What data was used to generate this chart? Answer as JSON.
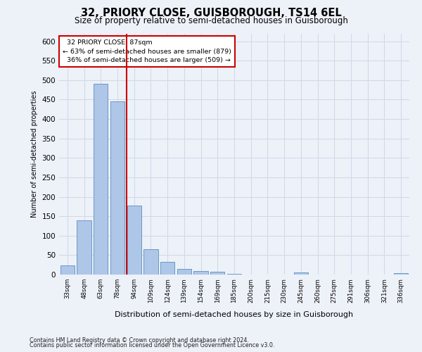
{
  "title1": "32, PRIORY CLOSE, GUISBOROUGH, TS14 6EL",
  "title2": "Size of property relative to semi-detached houses in Guisborough",
  "xlabel": "Distribution of semi-detached houses by size in Guisborough",
  "ylabel": "Number of semi-detached properties",
  "footer1": "Contains HM Land Registry data © Crown copyright and database right 2024.",
  "footer2": "Contains public sector information licensed under the Open Government Licence v3.0.",
  "bar_labels": [
    "33sqm",
    "48sqm",
    "63sqm",
    "78sqm",
    "94sqm",
    "109sqm",
    "124sqm",
    "139sqm",
    "154sqm",
    "169sqm",
    "185sqm",
    "200sqm",
    "215sqm",
    "230sqm",
    "245sqm",
    "260sqm",
    "275sqm",
    "291sqm",
    "306sqm",
    "321sqm",
    "336sqm"
  ],
  "bar_values": [
    23,
    140,
    490,
    445,
    178,
    65,
    33,
    15,
    9,
    8,
    2,
    0,
    0,
    0,
    5,
    0,
    0,
    0,
    0,
    0,
    4
  ],
  "bar_color": "#aec6e8",
  "bar_edge_color": "#5a8fc0",
  "grid_color": "#d0d8e8",
  "property_size": 87,
  "property_label": "32 PRIORY CLOSE: 87sqm",
  "pct_smaller": 63,
  "pct_larger": 36,
  "n_smaller": 879,
  "n_larger": 509,
  "annotation_box_color": "#ffffff",
  "annotation_box_edge_color": "#cc0000",
  "vline_color": "#cc0000",
  "ylim": [
    0,
    620
  ],
  "yticks": [
    0,
    50,
    100,
    150,
    200,
    250,
    300,
    350,
    400,
    450,
    500,
    550,
    600
  ],
  "background_color": "#edf1f8",
  "title1_fontsize": 10.5,
  "title2_fontsize": 8.5
}
